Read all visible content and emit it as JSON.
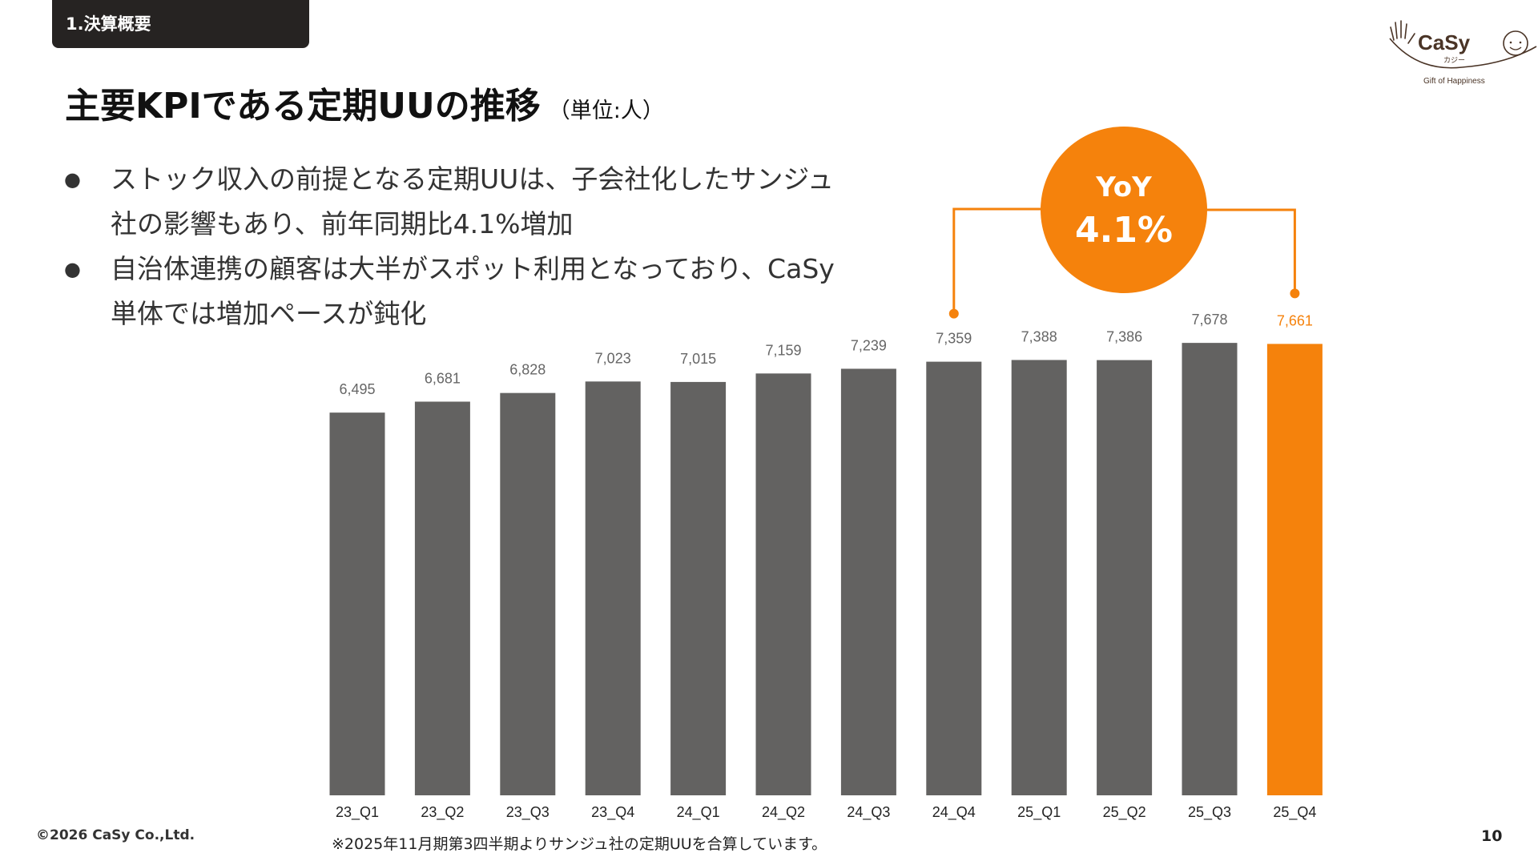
{
  "section_tag": "1.決算概要",
  "title": "主要KPIである定期UUの推移",
  "title_unit": "（単位:人）",
  "bullets": [
    "ストック収入の前提となる定期UUは、子会社化したサンジュ社の影響もあり、前年同期比4.1%増加",
    "自治体連携の顧客は大半がスポット利用となっており、CaSy単体では増加ペースが鈍化"
  ],
  "logo": {
    "brand": "CaSy",
    "kana": "カジー",
    "tagline": "Gift of Happiness"
  },
  "yoy": {
    "label": "YoY",
    "value": "4.1%"
  },
  "chart_data": {
    "type": "bar",
    "categories": [
      "23_Q1",
      "23_Q2",
      "23_Q3",
      "23_Q4",
      "24_Q1",
      "24_Q2",
      "24_Q3",
      "24_Q4",
      "25_Q1",
      "25_Q2",
      "25_Q3",
      "25_Q4"
    ],
    "values": [
      6495,
      6681,
      6828,
      7023,
      7015,
      7159,
      7239,
      7359,
      7388,
      7386,
      7678,
      7661
    ],
    "data_labels": [
      "6,495",
      "6,681",
      "6,828",
      "7,023",
      "7,015",
      "7,159",
      "7,239",
      "7,359",
      "7,388",
      "7,386",
      "7,678",
      "7,661"
    ],
    "ylim": [
      0,
      7678
    ],
    "grid": false,
    "highlight_index": 11,
    "yoy_compare": [
      "24_Q4",
      "25_Q4"
    ],
    "colors": {
      "bar": "#636261",
      "highlight": "#f5820c",
      "label": "#666666"
    }
  },
  "footer": {
    "copyright": "©2026 CaSy Co.,Ltd.",
    "note": "※2025年11月期第3四半期よりサンジュ社の定期UUを合算しています。",
    "page": "10"
  }
}
